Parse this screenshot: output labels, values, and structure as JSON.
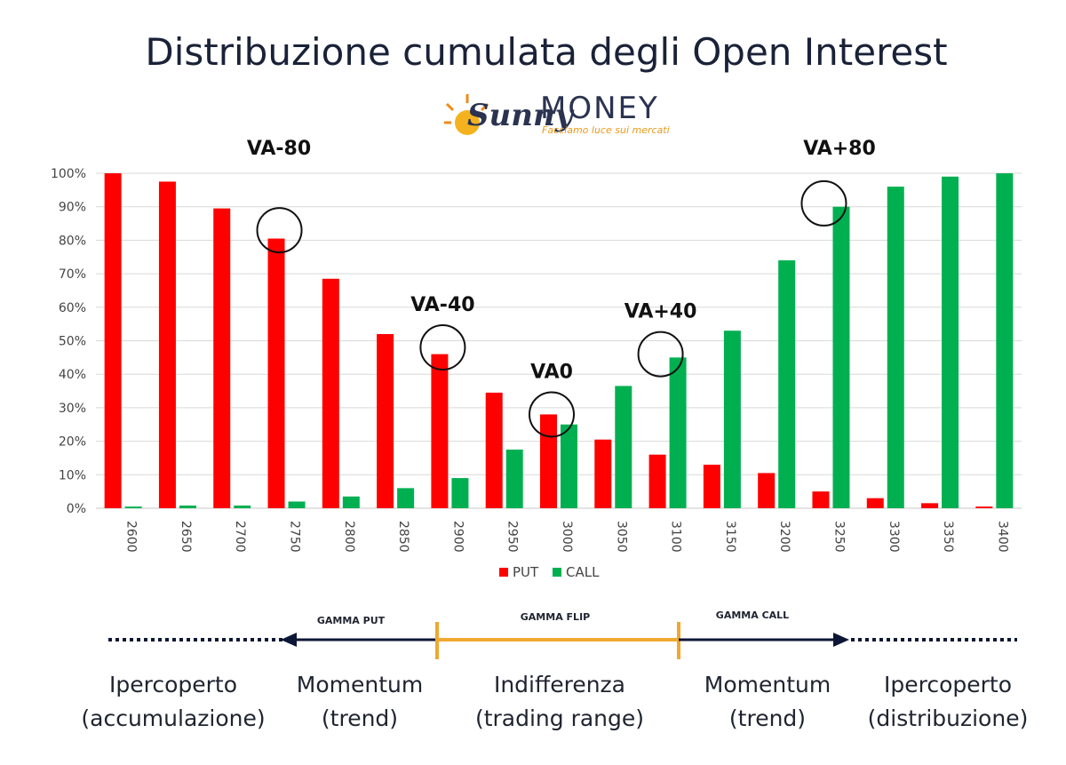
{
  "title": "Distribuzione cumulata degli Open Interest",
  "logo": {
    "script": "Sunny",
    "word": "MONEY",
    "tagline": "Facciamo luce sui mercati"
  },
  "colors": {
    "put": "#ff0000",
    "call": "#00b050",
    "arrow": "#0c1636",
    "flip": "#f0a830",
    "text": "#1f2430"
  },
  "chart_data": {
    "type": "bar",
    "categories": [
      "2600",
      "2650",
      "2700",
      "2750",
      "2800",
      "2850",
      "2900",
      "2950",
      "3000",
      "3050",
      "3100",
      "3150",
      "3200",
      "3250",
      "3300",
      "3350",
      "3400"
    ],
    "series": [
      {
        "name": "PUT",
        "values": [
          100,
          97.5,
          89.5,
          80.5,
          68.5,
          52,
          46,
          34.5,
          28,
          20.5,
          16,
          13,
          10.5,
          5,
          3,
          1.5,
          0.5
        ]
      },
      {
        "name": "CALL",
        "values": [
          0.5,
          0.8,
          0.8,
          2,
          3.5,
          6,
          9,
          17.5,
          25,
          36.5,
          45,
          53,
          74,
          90,
          96,
          99,
          100
        ]
      }
    ],
    "yticks": [
      "0%",
      "10%",
      "20%",
      "30%",
      "40%",
      "50%",
      "60%",
      "70%",
      "80%",
      "90%",
      "100%"
    ],
    "ylim": [
      0,
      100
    ],
    "grid": true,
    "legend": "bottom",
    "annotations": [
      {
        "label": "VA-80",
        "category": "2750",
        "circle_value": 83
      },
      {
        "label": "VA-40",
        "category": "2900",
        "circle_value": 48
      },
      {
        "label": "VA0",
        "category": "3000",
        "circle_value": 28
      },
      {
        "label": "VA+40",
        "category": "3100",
        "circle_value": 46
      },
      {
        "label": "VA+80",
        "category": "3250",
        "circle_value": 91
      }
    ]
  },
  "phases": {
    "gamma_put": "GAMMA PUT",
    "gamma_flip": "GAMMA FLIP",
    "gamma_call": "GAMMA CALL"
  },
  "zones": [
    {
      "line1": "Ipercoperto",
      "line2": "(accumulazione)"
    },
    {
      "line1": "Momentum",
      "line2": "(trend)"
    },
    {
      "line1": "Indifferenza",
      "line2": "(trading range)"
    },
    {
      "line1": "Momentum",
      "line2": "(trend)"
    },
    {
      "line1": "Ipercoperto",
      "line2": "(distribuzione)"
    }
  ]
}
